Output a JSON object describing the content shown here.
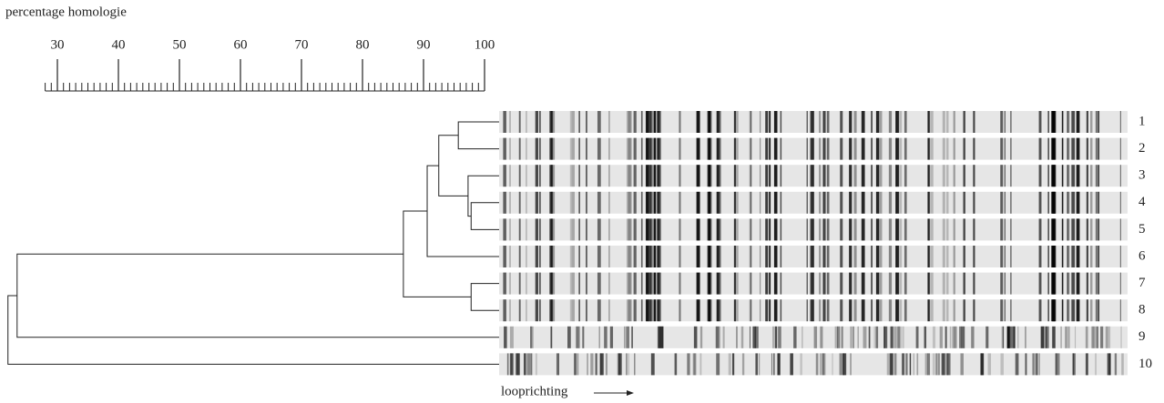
{
  "chart_data": {
    "type": "dendrogram",
    "x_label": "percentage homologie",
    "xlim": [
      28,
      100
    ],
    "xticks": [
      30,
      40,
      50,
      60,
      70,
      80,
      90,
      100
    ],
    "minor_xticks": [
      28,
      29,
      30,
      31,
      32,
      33,
      34,
      35,
      36,
      37,
      38,
      39,
      40,
      41,
      42,
      43,
      44,
      45,
      46,
      47,
      48,
      49,
      50,
      51,
      52,
      53,
      54,
      55,
      56,
      57,
      58,
      59,
      60,
      61,
      62,
      63,
      64,
      65,
      66,
      67,
      68,
      69,
      70,
      71,
      72,
      73,
      74,
      75,
      76,
      77,
      78,
      79,
      80,
      81,
      82,
      83,
      84,
      85,
      86,
      87,
      88,
      89,
      90,
      91,
      92,
      93,
      94,
      95,
      96,
      97,
      98,
      99,
      100
    ],
    "leaves": [
      "1",
      "2",
      "3",
      "4",
      "5",
      "6",
      "7",
      "8",
      "9",
      "10"
    ],
    "linkage": [
      [
        3,
        4,
        97.8
      ],
      [
        2,
        10,
        97.3
      ],
      [
        0,
        1,
        95.7
      ],
      [
        12,
        11,
        92.5
      ],
      [
        13,
        5,
        90.6
      ],
      [
        6,
        7,
        97.8
      ],
      [
        14,
        15,
        86.7
      ],
      [
        16,
        8,
        23.4
      ],
      [
        17,
        9,
        21.9
      ]
    ],
    "direction_label": "looprichting",
    "color": "#222222"
  }
}
